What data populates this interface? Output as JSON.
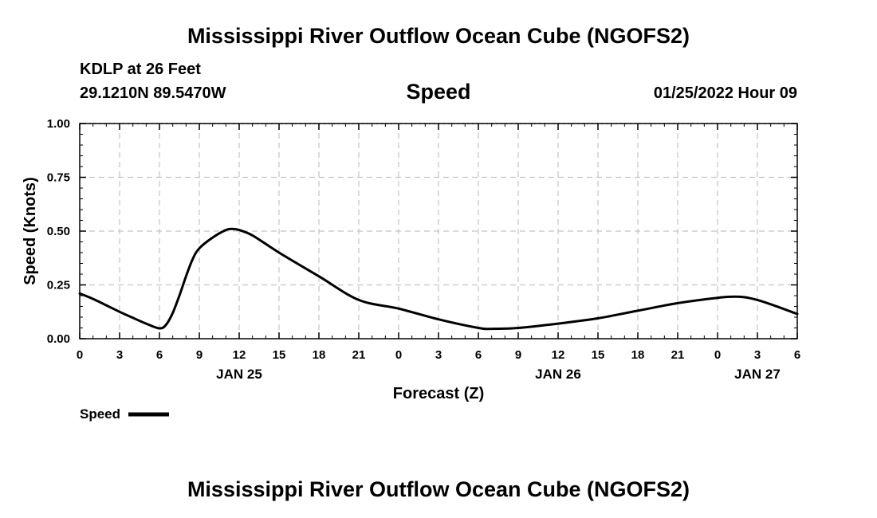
{
  "header": {
    "title": "Mississippi River Outflow Ocean Cube (NGOFS2)",
    "station": "KDLP at 26 Feet",
    "coords": "29.1210N  89.5470W",
    "subtitle": "Speed",
    "timestamp": "01/25/2022 Hour 09"
  },
  "footer": {
    "title": "Mississippi River Outflow Ocean Cube (NGOFS2)"
  },
  "chart_data": {
    "type": "line",
    "title": "Speed",
    "xlabel": "Forecast (Z)",
    "ylabel": "Speed (Knots)",
    "xlim": [
      0,
      54
    ],
    "ylim": [
      0,
      1.0
    ],
    "grid": true,
    "x_ticks": [
      0,
      3,
      6,
      9,
      12,
      15,
      18,
      21,
      24,
      27,
      30,
      33,
      36,
      39,
      42,
      45,
      48,
      51,
      54
    ],
    "x_tick_labels": [
      "0",
      "3",
      "6",
      "9",
      "12",
      "15",
      "18",
      "21",
      "0",
      "3",
      "6",
      "9",
      "12",
      "15",
      "18",
      "21",
      "0",
      "3",
      "6"
    ],
    "day_labels": [
      {
        "x": 12,
        "label": "JAN 25"
      },
      {
        "x": 36,
        "label": "JAN 26"
      },
      {
        "x": 51,
        "label": "JAN 27"
      }
    ],
    "y_ticks": [
      0.0,
      0.25,
      0.5,
      0.75,
      1.0
    ],
    "y_tick_labels": [
      "0.00",
      "0.25",
      "0.50",
      "0.75",
      "1.00"
    ],
    "legend": {
      "position": "bottom-left",
      "entries": [
        "Speed"
      ]
    },
    "series": [
      {
        "name": "Speed",
        "x": [
          0,
          1,
          2,
          3,
          4,
          5,
          6,
          6.5,
          7,
          7.5,
          8,
          8.5,
          9,
          10,
          11,
          11.5,
          12,
          13,
          15,
          18,
          21,
          24,
          27,
          30,
          31,
          33,
          36,
          39,
          42,
          45,
          48,
          49,
          50,
          51,
          52,
          54
        ],
        "y": [
          0.21,
          0.185,
          0.155,
          0.125,
          0.097,
          0.07,
          0.048,
          0.065,
          0.12,
          0.2,
          0.29,
          0.37,
          0.42,
          0.47,
          0.505,
          0.51,
          0.505,
          0.48,
          0.4,
          0.29,
          0.18,
          0.14,
          0.09,
          0.05,
          0.046,
          0.05,
          0.07,
          0.095,
          0.13,
          0.165,
          0.19,
          0.195,
          0.193,
          0.18,
          0.16,
          0.115
        ]
      }
    ]
  }
}
